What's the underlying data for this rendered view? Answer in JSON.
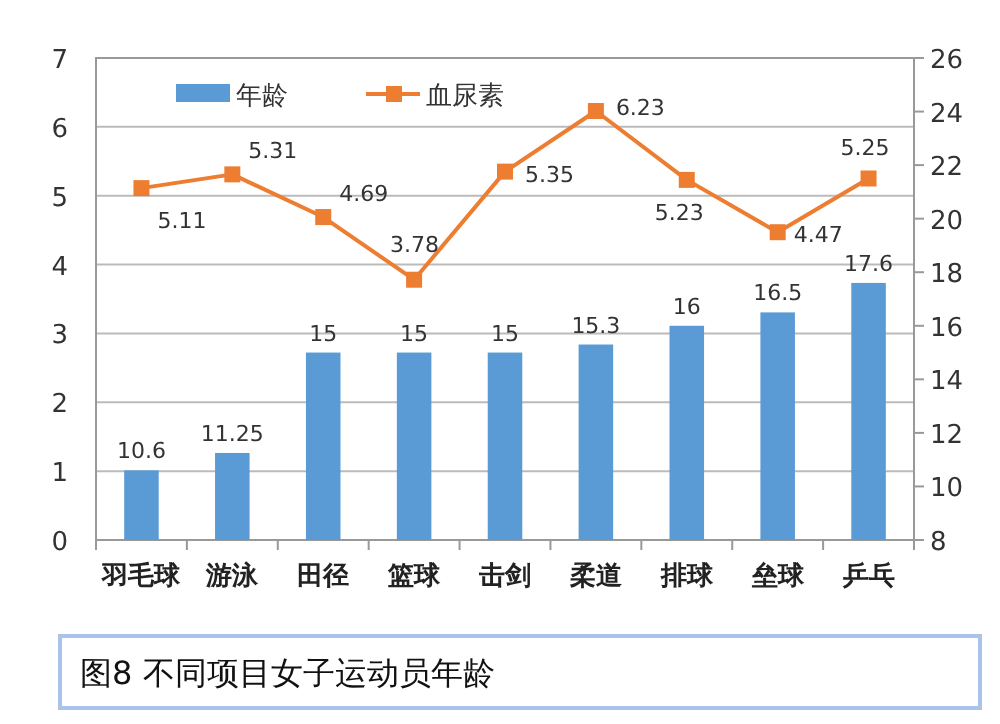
{
  "chart_data": {
    "type": "line",
    "categories": [
      "羽毛球",
      "游泳",
      "田径",
      "篮球",
      "击剑",
      "柔道",
      "排球",
      "垒球",
      "乒乓"
    ],
    "series": [
      {
        "name": "年龄",
        "type": "bar",
        "axis": "y2",
        "color": "#5b9bd5",
        "values": [
          10.6,
          11.25,
          15,
          15,
          15,
          15.3,
          16,
          16.5,
          17.6
        ]
      },
      {
        "name": "血尿素",
        "color": "#ed7d31",
        "marker": "square",
        "values": [
          5.11,
          5.31,
          4.69,
          3.78,
          5.35,
          6.23,
          5.23,
          4.47,
          5.25
        ]
      }
    ],
    "ylim": [
      0,
      7
    ],
    "yticks": [
      0,
      1,
      2,
      3,
      4,
      5,
      6,
      7
    ],
    "y2lim": [
      8,
      26
    ],
    "y2ticks": [
      8,
      10,
      12,
      14,
      16,
      18,
      20,
      22,
      24,
      26
    ],
    "grid": "y",
    "legend": "top",
    "data_labels": true,
    "annotations": [
      "图8 不同项目女子运动员年龄"
    ]
  }
}
